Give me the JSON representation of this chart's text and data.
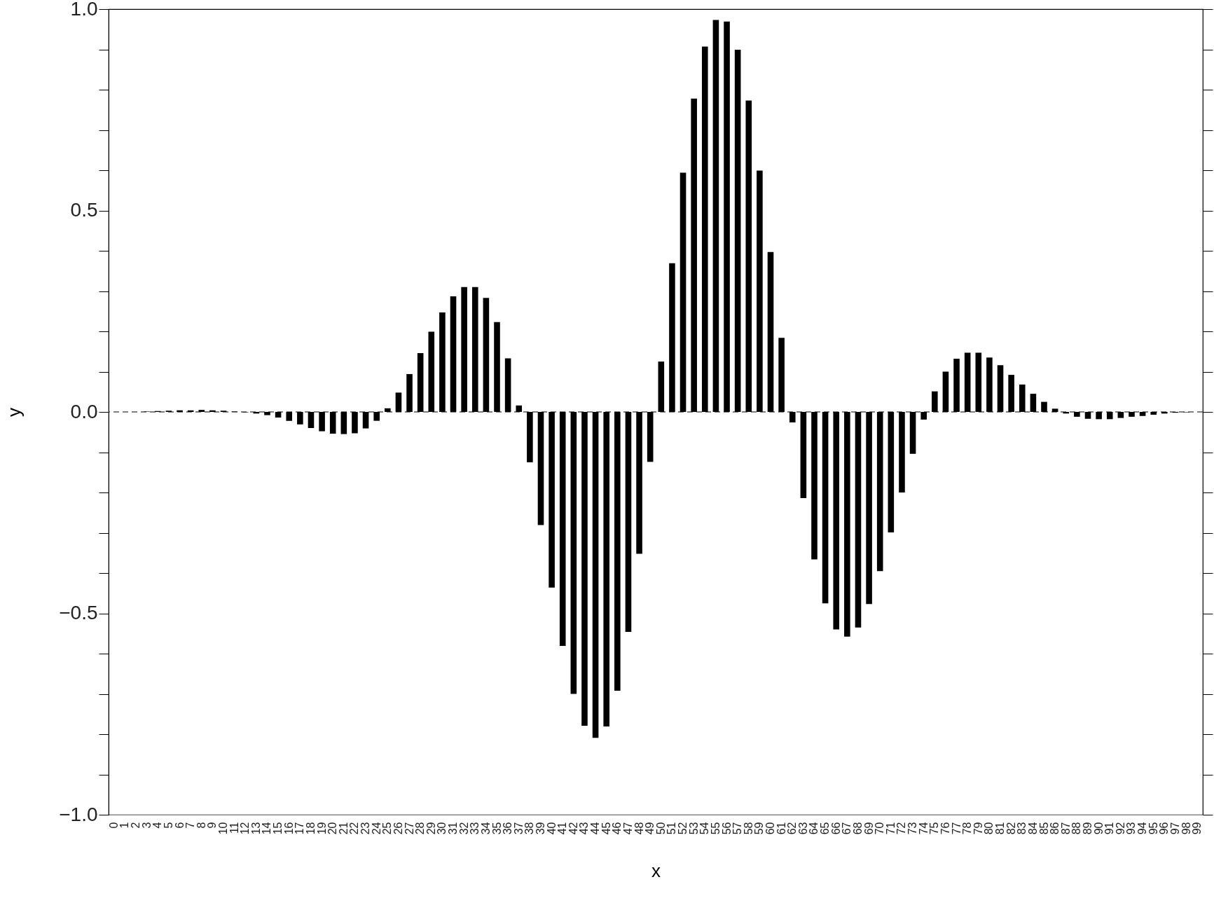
{
  "chart_data": {
    "type": "bar",
    "xlabel": "x",
    "ylabel": "y",
    "categories": [
      "0",
      "1",
      "2",
      "3",
      "4",
      "5",
      "6",
      "7",
      "8",
      "9",
      "10",
      "11",
      "12",
      "13",
      "14",
      "15",
      "16",
      "17",
      "18",
      "19",
      "20",
      "21",
      "22",
      "23",
      "24",
      "25",
      "26",
      "27",
      "28",
      "29",
      "30",
      "31",
      "32",
      "33",
      "34",
      "35",
      "36",
      "37",
      "38",
      "39",
      "40",
      "41",
      "42",
      "43",
      "44",
      "45",
      "46",
      "47",
      "48",
      "49",
      "50",
      "51",
      "52",
      "53",
      "54",
      "55",
      "56",
      "57",
      "58",
      "59",
      "60",
      "61",
      "62",
      "63",
      "64",
      "65",
      "66",
      "67",
      "68",
      "69",
      "70",
      "71",
      "72",
      "73",
      "74",
      "75",
      "76",
      "77",
      "78",
      "79",
      "80",
      "81",
      "82",
      "83",
      "84",
      "85",
      "86",
      "87",
      "88",
      "89",
      "90",
      "91",
      "92",
      "93",
      "94",
      "95",
      "96",
      "97",
      "98",
      "99"
    ],
    "values": [
      0,
      0,
      0,
      0.001,
      0.002,
      0.003,
      0.004,
      0.004,
      0.005,
      0.004,
      0.003,
      0.001,
      -0.001,
      -0.004,
      -0.008,
      -0.014,
      -0.022,
      -0.031,
      -0.04,
      -0.048,
      -0.054,
      -0.055,
      -0.053,
      -0.041,
      -0.022,
      0.009,
      0.048,
      0.094,
      0.146,
      0.199,
      0.247,
      0.287,
      0.31,
      0.31,
      0.283,
      0.223,
      0.133,
      0.016,
      -0.125,
      -0.281,
      -0.436,
      -0.581,
      -0.7,
      -0.779,
      -0.809,
      -0.781,
      -0.692,
      -0.546,
      -0.352,
      -0.124,
      0.125,
      0.369,
      0.594,
      0.778,
      0.907,
      0.973,
      0.969,
      0.899,
      0.773,
      0.599,
      0.397,
      0.184,
      -0.026,
      -0.214,
      -0.366,
      -0.475,
      -0.54,
      -0.558,
      -0.535,
      -0.477,
      -0.395,
      -0.299,
      -0.2,
      -0.104,
      -0.019,
      0.051,
      0.1,
      0.132,
      0.147,
      0.147,
      0.135,
      0.116,
      0.092,
      0.068,
      0.045,
      0.025,
      0.008,
      -0.004,
      -0.012,
      -0.017,
      -0.018,
      -0.018,
      -0.015,
      -0.012,
      -0.01,
      -0.007,
      -0.004,
      -0.002,
      -0.001,
      0
    ],
    "color": "#000000",
    "ylim": [
      -1,
      1
    ],
    "yticks": [
      {
        "value": -1,
        "label": "−1.0"
      },
      {
        "value": -0.9,
        "label": null
      },
      {
        "value": -0.8,
        "label": null
      },
      {
        "value": -0.7,
        "label": null
      },
      {
        "value": -0.6,
        "label": null
      },
      {
        "value": -0.5,
        "label": "−0.5"
      },
      {
        "value": -0.4,
        "label": null
      },
      {
        "value": -0.3,
        "label": null
      },
      {
        "value": -0.2,
        "label": null
      },
      {
        "value": -0.1,
        "label": null
      },
      {
        "value": 0,
        "label": "0.0"
      },
      {
        "value": 0.1,
        "label": null
      },
      {
        "value": 0.2,
        "label": null
      },
      {
        "value": 0.3,
        "label": null
      },
      {
        "value": 0.4,
        "label": null
      },
      {
        "value": 0.5,
        "label": "0.5"
      },
      {
        "value": 0.6,
        "label": null
      },
      {
        "value": 0.7,
        "label": null
      },
      {
        "value": 0.8,
        "label": null
      },
      {
        "value": 0.9,
        "label": null
      },
      {
        "value": 1,
        "label": "1.0"
      }
    ],
    "ref_lines": [
      {
        "axis": "y",
        "value": 0,
        "color": "#555555",
        "line_style": "dashed"
      }
    ],
    "grid": false
  }
}
